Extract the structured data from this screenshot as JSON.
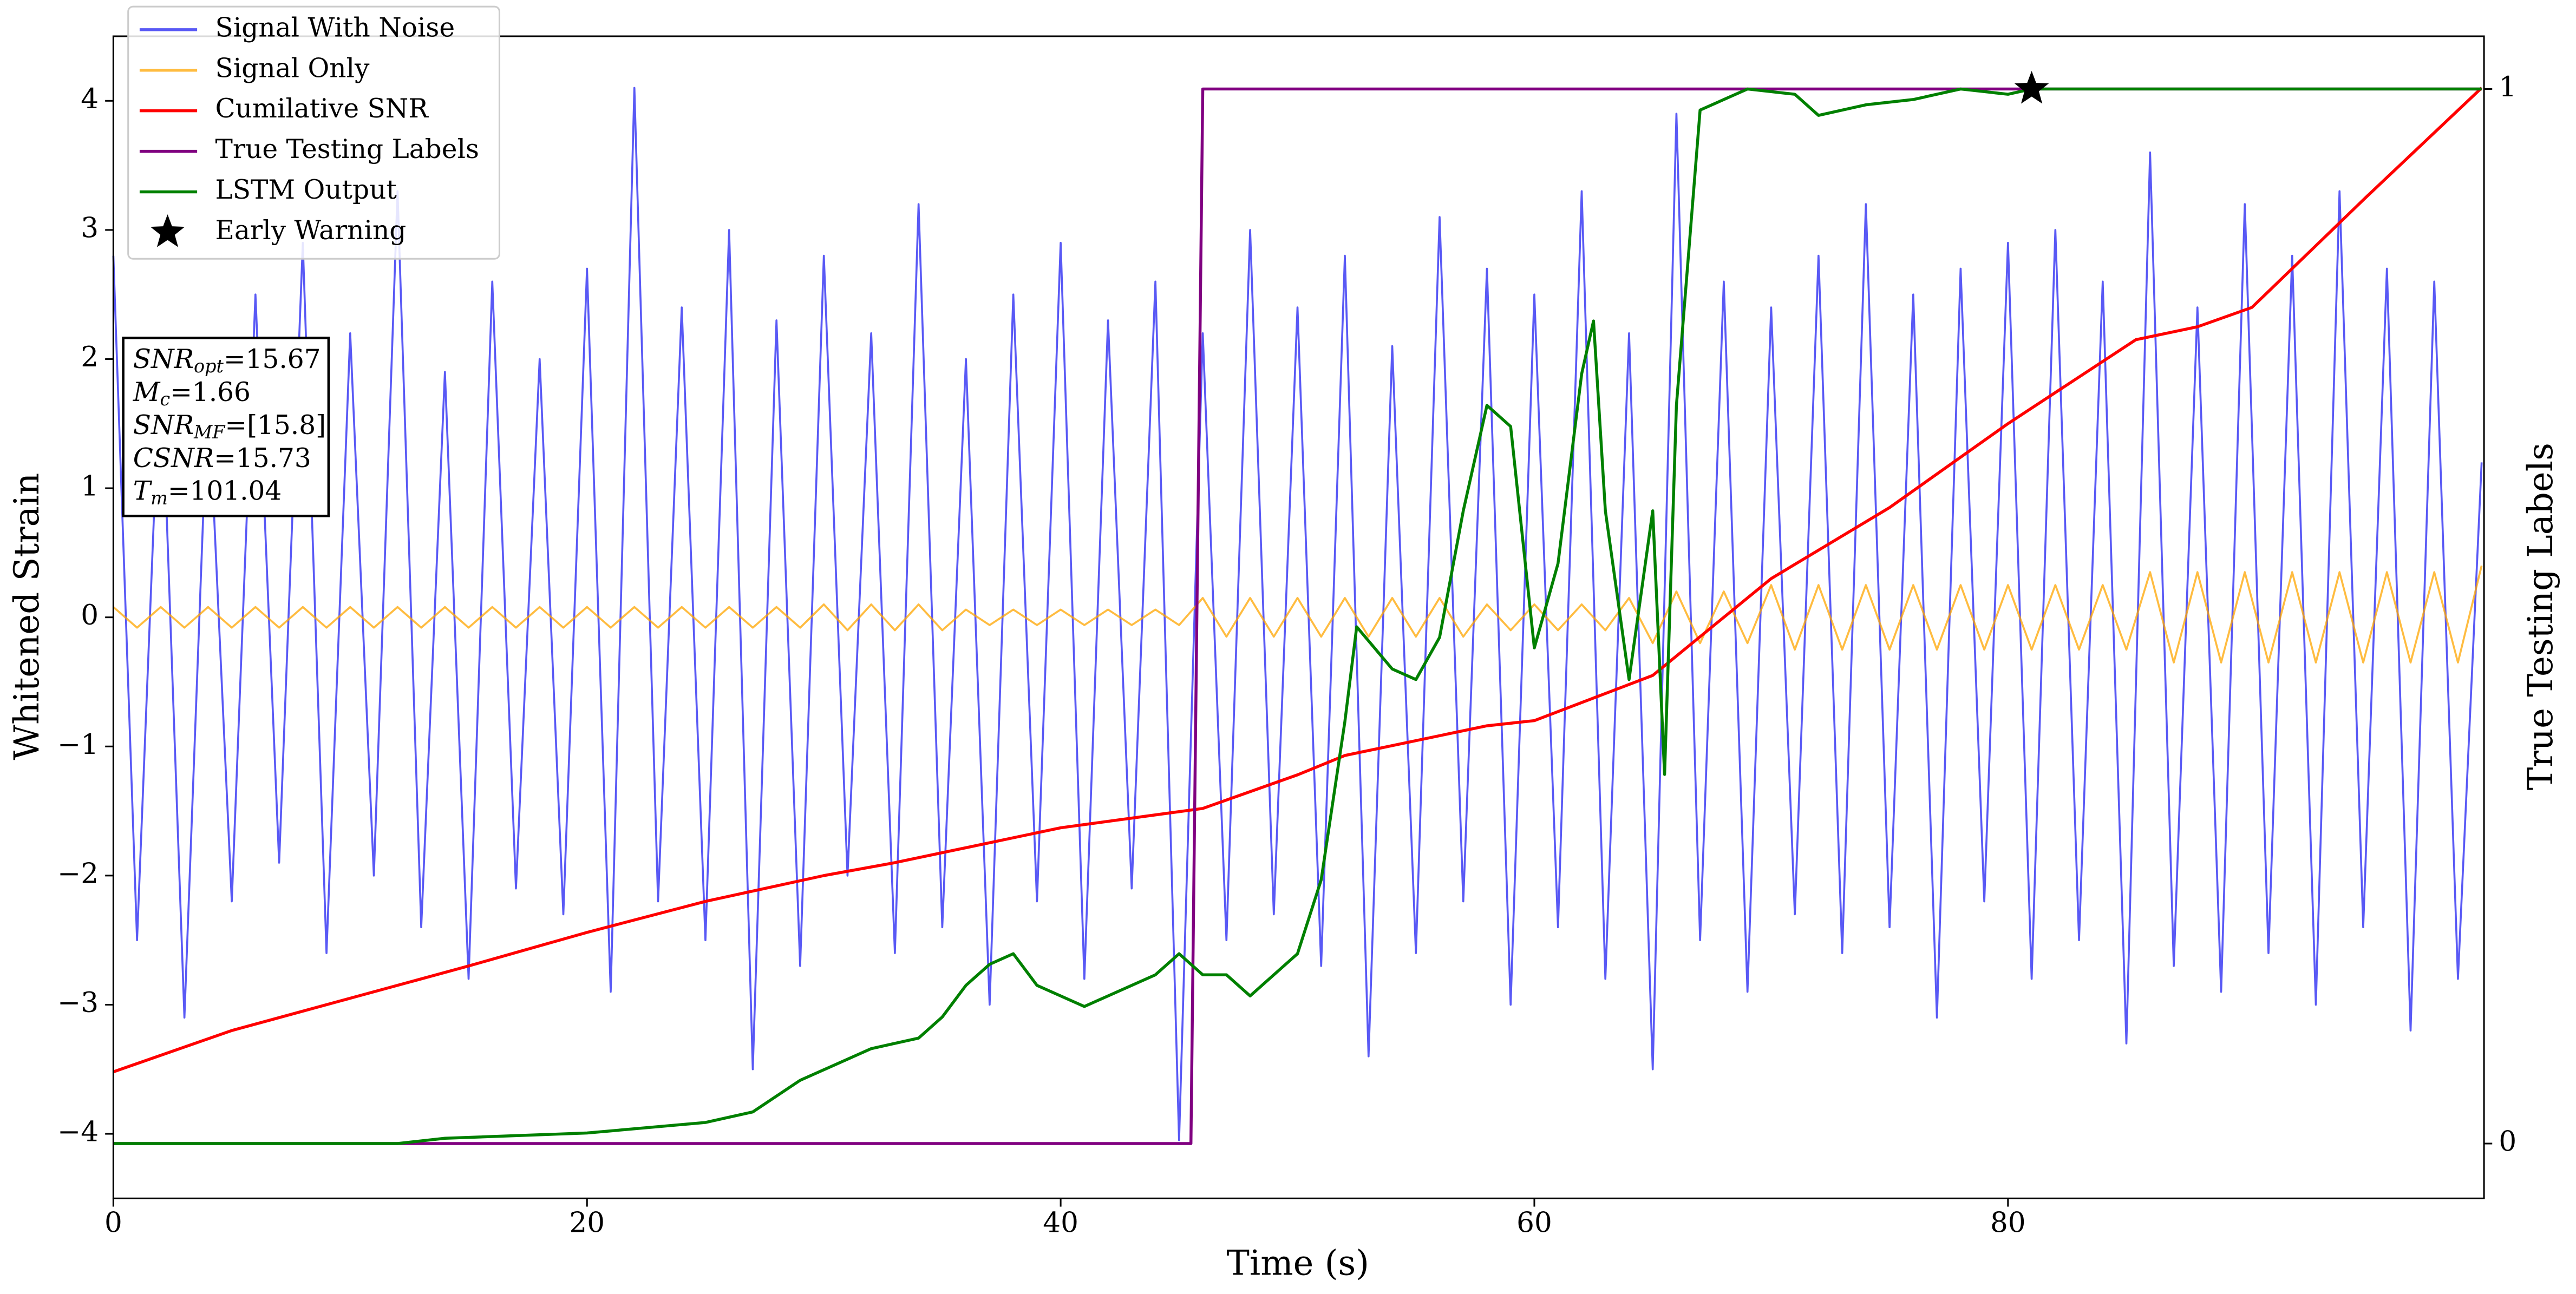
{
  "chart_data": {
    "type": "line",
    "x_label": "Time (s)",
    "y_label": "Whitened Strain",
    "y2_label": "True Testing Labels",
    "xlim": [
      0,
      100.1
    ],
    "ylim": [
      -4.5,
      4.5
    ],
    "y2lim": [
      -0.052,
      1.05
    ],
    "xticks": [
      0,
      20,
      40,
      60,
      80
    ],
    "yticks": [
      {
        "value": -4,
        "label": "−4"
      },
      {
        "value": -3,
        "label": "−3"
      },
      {
        "value": -2,
        "label": "−2"
      },
      {
        "value": -1,
        "label": "−1"
      },
      0,
      1,
      2,
      3,
      4
    ],
    "y2ticks": [
      0,
      1
    ],
    "legend": "upper left",
    "x": [
      0,
      1,
      2,
      3,
      4,
      5,
      6,
      7,
      8,
      9,
      10,
      11,
      12,
      13,
      14,
      15,
      16,
      17,
      18,
      19,
      20,
      21,
      22,
      23,
      24,
      25,
      26,
      27,
      28,
      29,
      30,
      31,
      32,
      33,
      34,
      35,
      36,
      37,
      38,
      39,
      40,
      41,
      42,
      43,
      44,
      45,
      46,
      47,
      48,
      49,
      50,
      51,
      52,
      53,
      54,
      55,
      56,
      57,
      58,
      59,
      60,
      61,
      62,
      63,
      64,
      65,
      66,
      67,
      68,
      69,
      70,
      71,
      72,
      73,
      74,
      75,
      76,
      77,
      78,
      79,
      80,
      81,
      82,
      83,
      84,
      85,
      86,
      87,
      88,
      89,
      90,
      91,
      92,
      93,
      94,
      95,
      96,
      97,
      98,
      99,
      100
    ],
    "series": [
      {
        "name": "Signal With Noise",
        "color": "#2f2ff2",
        "axis": "y",
        "values": [
          2.8,
          -2.5,
          2.1,
          -3.1,
          1.8,
          -2.2,
          2.5,
          -1.9,
          2.9,
          -2.6,
          2.2,
          -2.0,
          3.3,
          -2.4,
          1.9,
          -2.8,
          2.6,
          -2.1,
          2.0,
          -2.3,
          2.7,
          -2.9,
          4.1,
          -2.2,
          2.4,
          -2.5,
          3.0,
          -3.5,
          2.3,
          -2.7,
          2.8,
          -2.0,
          2.2,
          -2.6,
          3.2,
          -2.4,
          2.0,
          -3.0,
          2.5,
          -2.2,
          2.9,
          -2.8,
          2.3,
          -2.1,
          2.6,
          -4.05,
          2.2,
          -2.5,
          3.0,
          -2.3,
          2.4,
          -2.7,
          2.8,
          -3.4,
          2.1,
          -2.6,
          3.1,
          -2.2,
          2.7,
          -3.0,
          2.5,
          -2.4,
          3.3,
          -2.8,
          2.2,
          -3.5,
          3.9,
          -2.5,
          2.6,
          -2.9,
          2.4,
          -2.3,
          2.8,
          -2.6,
          3.2,
          -2.4,
          2.5,
          -3.1,
          2.7,
          -2.2,
          2.9,
          -2.8,
          3.0,
          -2.5,
          2.6,
          -3.3,
          3.6,
          -2.7,
          2.4,
          -2.9,
          3.2,
          -2.6,
          2.8,
          -3.0,
          3.3,
          -2.4,
          2.7,
          -3.2,
          2.6,
          -2.8,
          1.2
        ]
      },
      {
        "name": "Signal Only",
        "color": "#ffa500",
        "axis": "y",
        "values": [
          0.08,
          -0.08,
          0.08,
          -0.08,
          0.08,
          -0.08,
          0.08,
          -0.08,
          0.08,
          -0.08,
          0.08,
          -0.08,
          0.08,
          -0.08,
          0.08,
          -0.08,
          0.08,
          -0.08,
          0.08,
          -0.08,
          0.08,
          -0.08,
          0.08,
          -0.08,
          0.08,
          -0.08,
          0.08,
          -0.08,
          0.08,
          -0.08,
          0.1,
          -0.1,
          0.1,
          -0.1,
          0.1,
          -0.1,
          0.06,
          -0.06,
          0.06,
          -0.06,
          0.06,
          -0.06,
          0.06,
          -0.06,
          0.06,
          -0.06,
          0.15,
          -0.15,
          0.15,
          -0.15,
          0.15,
          -0.15,
          0.15,
          -0.15,
          0.15,
          -0.15,
          0.15,
          -0.15,
          0.1,
          -0.1,
          0.1,
          -0.1,
          0.1,
          -0.1,
          0.15,
          -0.2,
          0.2,
          -0.2,
          0.2,
          -0.2,
          0.25,
          -0.25,
          0.25,
          -0.25,
          0.25,
          -0.25,
          0.25,
          -0.25,
          0.25,
          -0.25,
          0.25,
          -0.25,
          0.25,
          -0.25,
          0.25,
          -0.25,
          0.35,
          -0.35,
          0.35,
          -0.35,
          0.35,
          -0.35,
          0.35,
          -0.35,
          0.35,
          -0.35,
          0.35,
          -0.35,
          0.35,
          -0.35,
          0.4
        ]
      },
      {
        "name": "Cumilative SNR",
        "color": "#ff0000",
        "axis": "y",
        "x": [
          0,
          5,
          10,
          15,
          20,
          25,
          30,
          33,
          40,
          46,
          50,
          52,
          58,
          60,
          65,
          70,
          75,
          80,
          85.4,
          88,
          90.3,
          95.1,
          100
        ],
        "values": [
          -3.52,
          -3.2,
          -2.95,
          -2.7,
          -2.44,
          -2.2,
          -2.0,
          -1.9,
          -1.63,
          -1.48,
          -1.22,
          -1.07,
          -0.84,
          -0.8,
          -0.45,
          0.3,
          0.85,
          1.5,
          2.15,
          2.25,
          2.4,
          3.25,
          4.1
        ]
      },
      {
        "name": "True Testing Labels",
        "color": "#800080",
        "axis": "y2",
        "x": [
          0,
          45.5,
          46,
          100
        ],
        "values": [
          0,
          0,
          1,
          1
        ]
      },
      {
        "name": "LSTM Output",
        "color": "#008000",
        "axis": "y2",
        "x": [
          0,
          12,
          14,
          20,
          25,
          27,
          29,
          30,
          32,
          34,
          35,
          36,
          37,
          38,
          39,
          40,
          41,
          42,
          44,
          45,
          46,
          47,
          48,
          50,
          51,
          52,
          52.5,
          54,
          55,
          56,
          57,
          58,
          59,
          60,
          61,
          62,
          62.5,
          63,
          64,
          65,
          65.5,
          66,
          67,
          69,
          71,
          72,
          74,
          76,
          78,
          80,
          81,
          100
        ],
        "values": [
          0,
          0,
          0.005,
          0.01,
          0.02,
          0.03,
          0.06,
          0.07,
          0.09,
          0.1,
          0.12,
          0.15,
          0.17,
          0.18,
          0.15,
          0.14,
          0.13,
          0.14,
          0.16,
          0.18,
          0.16,
          0.16,
          0.14,
          0.18,
          0.25,
          0.4,
          0.49,
          0.45,
          0.44,
          0.48,
          0.6,
          0.7,
          0.68,
          0.47,
          0.55,
          0.73,
          0.78,
          0.6,
          0.44,
          0.6,
          0.35,
          0.7,
          0.98,
          1.0,
          0.995,
          0.975,
          0.985,
          0.99,
          1.0,
          0.995,
          1.0,
          1.0
        ]
      },
      {
        "name": "Early Warning",
        "color": "#000000",
        "axis": "y2",
        "marker": "star",
        "x": [
          81
        ],
        "values": [
          1
        ]
      }
    ],
    "annotation": [
      {
        "symbol": "SNR",
        "sub": "opt",
        "text": "=15.67"
      },
      {
        "symbol": "M",
        "sub": "c",
        "text": "=1.66"
      },
      {
        "symbol": "SNR",
        "sub": "MF",
        "text": "=[15.8]"
      },
      {
        "symbol": "CSNR",
        "text": "=15.73"
      },
      {
        "symbol": "T",
        "sub": "m",
        "text": "=101.04"
      }
    ]
  }
}
